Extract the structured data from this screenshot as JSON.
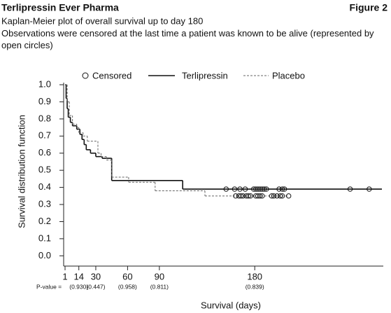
{
  "chart_data": {
    "type": "step",
    "header": "Terlipressin Ever Pharma",
    "figure_label": "Figure 2",
    "title": "Kaplan-Meier plot of overall survival up to day 180",
    "subtitle": "Observations were censored at the last time a patient was known to be alive (represented by open circles)",
    "xlabel": "Survival (days)",
    "ylabel": "Survival distribution function",
    "censored_name": "Censored",
    "xlim": [
      0,
      300
    ],
    "xticks": [
      1,
      14,
      30,
      60,
      90,
      180
    ],
    "ylim": [
      -0.06,
      1.0
    ],
    "yticks": [
      {
        "value": 0,
        "label": "0.0"
      },
      0.1,
      0.2,
      0.3,
      0.4,
      0.5,
      0.6,
      0.7,
      0.8,
      0.9,
      {
        "value": 1,
        "label": "1.0"
      }
    ],
    "p_value_label": "P-value =",
    "p_values": [
      {
        "x": 14,
        "label": "(0.930)"
      },
      {
        "x": 30,
        "label": "(0.447)"
      },
      {
        "x": 60,
        "label": "(0.958)"
      },
      {
        "x": 90,
        "label": "(0.811)"
      },
      {
        "x": 180,
        "label": "(0.839)"
      }
    ],
    "series": [
      {
        "name": "Terlipressin",
        "color": "#111111",
        "dash": false,
        "x": [
          1,
          2,
          3,
          4,
          6,
          8,
          12,
          15,
          17,
          19,
          21,
          25,
          30,
          36,
          45,
          112,
          300
        ],
        "values": [
          1.0,
          0.92,
          0.86,
          0.81,
          0.78,
          0.76,
          0.74,
          0.71,
          0.68,
          0.65,
          0.62,
          0.6,
          0.58,
          0.57,
          0.44,
          0.39,
          0.39
        ],
        "censored_x": [
          153,
          161,
          166,
          171,
          179,
          181,
          183,
          185,
          187,
          189,
          191,
          203,
          206,
          208,
          270,
          288
        ],
        "censored_values": [
          0.39,
          0.39,
          0.39,
          0.39,
          0.39,
          0.39,
          0.39,
          0.39,
          0.39,
          0.39,
          0.39,
          0.39,
          0.39,
          0.39,
          0.39,
          0.39
        ]
      },
      {
        "name": "Placebo",
        "color": "#666666",
        "dash": true,
        "x": [
          1,
          3,
          5,
          8,
          12,
          14,
          18,
          22,
          32,
          35,
          40,
          45,
          61,
          86,
          133,
          212
        ],
        "values": [
          1.0,
          0.9,
          0.82,
          0.77,
          0.75,
          0.72,
          0.7,
          0.67,
          0.6,
          0.58,
          0.56,
          0.46,
          0.43,
          0.38,
          0.35,
          0.35
        ],
        "censored_x": [
          162,
          165,
          167,
          169,
          172,
          174,
          176,
          181,
          183,
          185,
          187,
          196,
          198,
          201,
          204,
          206,
          212
        ],
        "censored_values": [
          0.35,
          0.35,
          0.35,
          0.35,
          0.35,
          0.35,
          0.35,
          0.35,
          0.35,
          0.35,
          0.35,
          0.35,
          0.35,
          0.35,
          0.35,
          0.35,
          0.35
        ]
      }
    ]
  }
}
